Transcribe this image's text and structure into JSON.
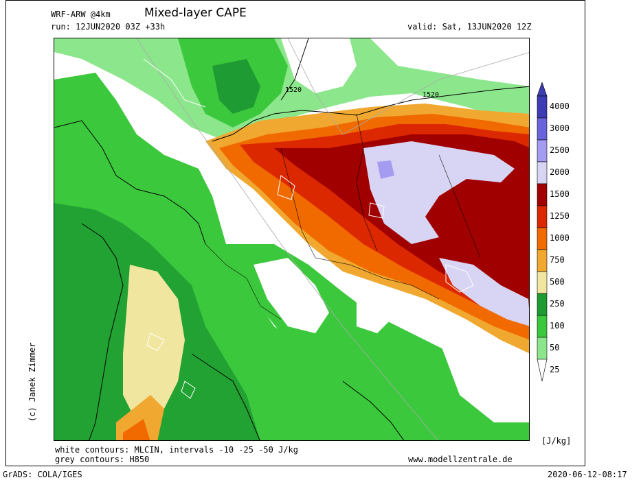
{
  "header": {
    "model": "WRF-ARW @4km",
    "title": "Mixed-layer CAPE",
    "run": "run: 12JUN2020 03Z +33h",
    "valid": "valid: Sat, 13JUN2020 12Z"
  },
  "map_labels": {
    "contour_a": "1520",
    "contour_b": "1520"
  },
  "credit": "(c) Janek Zimmer",
  "legend": {
    "unit": "[J/kg]",
    "levels": [
      "4000",
      "3000",
      "2500",
      "2000",
      "1500",
      "1250",
      "1000",
      "750",
      "500",
      "250",
      "100",
      "50",
      "25"
    ],
    "colors": {
      "c4000": "#3c3cb4",
      "c3000": "#6a64dc",
      "c2500": "#a49cf0",
      "c2000": "#d8d4f4",
      "c1500": "#a00000",
      "c1250": "#dc2800",
      "c1000": "#f06a00",
      "c750": "#f0a830",
      "c500": "#f0e6a0",
      "c250": "#1e9b32",
      "c100": "#3cc83c",
      "c50": "#8ce68c",
      "c25": "#d2f5d2"
    }
  },
  "footer": {
    "line1": "white contours: MLCIN, intervals -10 -25 -50 J/kg",
    "line2": "grey contours: H850",
    "site": "www.modellzentrale.de",
    "grads": "GrADS: COLA/IGES",
    "timestamp": "2020-06-12-08:17"
  }
}
